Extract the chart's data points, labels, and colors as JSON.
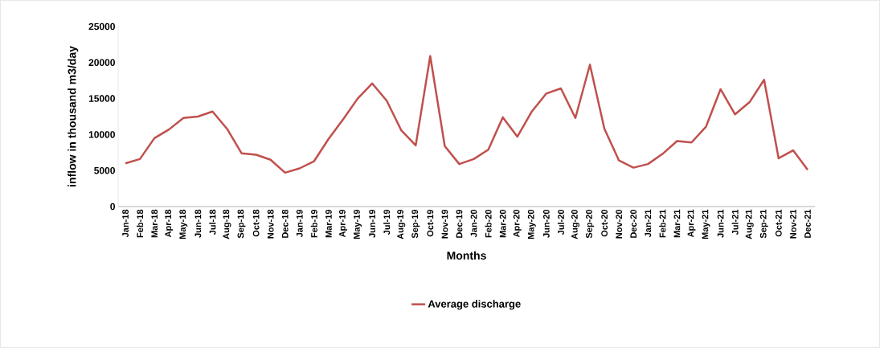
{
  "chart_data": {
    "type": "line",
    "xlabel": "Months",
    "ylabel": "inflow in thousand  m3/day",
    "categories": [
      "Jan-18",
      "Feb-18",
      "Mar-18",
      "Apr-18",
      "May-18",
      "Jun-18",
      "Jul-18",
      "Aug-18",
      "Sep-18",
      "Oct-18",
      "Nov-18",
      "Dec-18",
      "Jan-19",
      "Feb-19",
      "Mar-19",
      "Apr-19",
      "May-19",
      "Jun-19",
      "Jul-19",
      "Aug-19",
      "Sep-19",
      "Oct-19",
      "Nov-19",
      "Dec-19",
      "Jan-20",
      "Feb-20",
      "Mar-20",
      "Apr-20",
      "May-20",
      "Jun-20",
      "Jul-20",
      "Aug-20",
      "Sep-20",
      "Oct-20",
      "Nov-20",
      "Dec-20",
      "Jan-21",
      "Feb-21",
      "Mar-21",
      "Apr-21",
      "May-21",
      "Jun-21",
      "Jul-21",
      "Aug-21",
      "Sep-21",
      "Oct-21",
      "Nov-21",
      "Dec-21"
    ],
    "series": [
      {
        "name": "Average discharge",
        "color": "#c0504d",
        "values": [
          6000,
          6600,
          9500,
          10700,
          12300,
          12500,
          13200,
          10800,
          7400,
          7200,
          6500,
          4700,
          5300,
          6300,
          9400,
          12100,
          15000,
          17100,
          14700,
          10600,
          8500,
          20900,
          8400,
          5900,
          6600,
          7900,
          12400,
          9700,
          13200,
          15700,
          16400,
          12300,
          19700,
          10800,
          6400,
          5400,
          5900,
          7300,
          9100,
          8900,
          11100,
          16300,
          12800,
          14500,
          17600,
          6700,
          7800,
          5100
        ]
      }
    ],
    "ylim": [
      0,
      25000
    ],
    "yticks": [
      0,
      5000,
      10000,
      15000,
      20000,
      25000
    ],
    "grid": false,
    "legend": "bottom",
    "marker": "none",
    "line_style": "solid"
  }
}
